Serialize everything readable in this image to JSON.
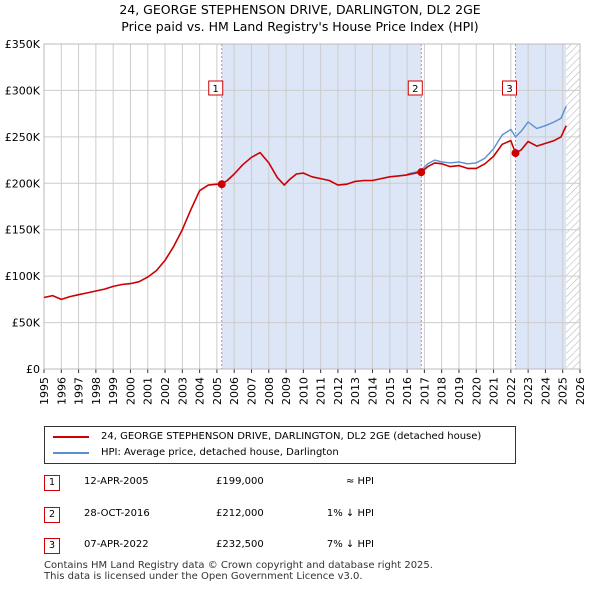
{
  "header": {
    "title_line1": "24, GEORGE STEPHENSON DRIVE, DARLINGTON, DL2 2GE",
    "title_line2": "Price paid vs. HM Land Registry's House Price Index (HPI)"
  },
  "colors": {
    "property_line": "#cc0000",
    "hpi_line": "#5a8fd0",
    "band_fill": "#dde6f7",
    "vline": "#e07b7b",
    "grid": "#cccccc"
  },
  "chart_data": {
    "type": "line",
    "title": "24, GEORGE STEPHENSON DRIVE, DARLINGTON, DL2 2GE",
    "subtitle": "Price paid vs. HM Land Registry's House Price Index (HPI)",
    "xlabel": "",
    "ylabel": "",
    "xlim": [
      1995,
      2026
    ],
    "ylim": [
      0,
      350000
    ],
    "yticks": [
      0,
      50000,
      100000,
      150000,
      200000,
      250000,
      300000,
      350000
    ],
    "ytick_labels": [
      "£0",
      "£50K",
      "£100K",
      "£150K",
      "£200K",
      "£250K",
      "£300K",
      "£350K"
    ],
    "xticks": [
      "1995",
      "1996",
      "1997",
      "1998",
      "1999",
      "2000",
      "2001",
      "2002",
      "2003",
      "2004",
      "2005",
      "2006",
      "2007",
      "2008",
      "2009",
      "2010",
      "2011",
      "2012",
      "2013",
      "2014",
      "2015",
      "2016",
      "2017",
      "2018",
      "2019",
      "2020",
      "2021",
      "2022",
      "2023",
      "2024",
      "2025",
      "2026"
    ],
    "grid": true,
    "series": [
      {
        "name": "24, GEORGE STEPHENSON DRIVE, DARLINGTON, DL2 2GE (detached house)",
        "color": "#cc0000",
        "x": [
          1995.0,
          1995.5,
          1996.0,
          1996.5,
          1997.0,
          1997.5,
          1998.0,
          1998.5,
          1999.0,
          1999.5,
          2000.0,
          2000.5,
          2001.0,
          2001.5,
          2002.0,
          2002.5,
          2003.0,
          2003.5,
          2004.0,
          2004.5,
          2005.0,
          2005.28,
          2005.6,
          2006.0,
          2006.5,
          2007.0,
          2007.5,
          2008.0,
          2008.5,
          2008.9,
          2009.2,
          2009.6,
          2010.0,
          2010.5,
          2011.0,
          2011.5,
          2012.0,
          2012.5,
          2013.0,
          2013.5,
          2014.0,
          2014.5,
          2015.0,
          2015.5,
          2016.0,
          2016.5,
          2016.82,
          2017.2,
          2017.6,
          2018.0,
          2018.5,
          2019.0,
          2019.5,
          2020.0,
          2020.5,
          2021.0,
          2021.5,
          2022.0,
          2022.27,
          2022.6,
          2023.0,
          2023.5,
          2024.0,
          2024.5,
          2024.9,
          2025.2
        ],
        "values": [
          77000,
          79000,
          75000,
          78000,
          80000,
          82000,
          84000,
          86000,
          89000,
          91000,
          92000,
          94000,
          99000,
          106000,
          117000,
          132000,
          150000,
          172000,
          192000,
          198000,
          199000,
          199000,
          203000,
          210000,
          220000,
          228000,
          233000,
          222000,
          206000,
          198000,
          204000,
          210000,
          211000,
          207000,
          205000,
          203000,
          198000,
          199000,
          202000,
          203000,
          203000,
          205000,
          207000,
          208000,
          209000,
          211000,
          212000,
          218000,
          222000,
          221000,
          218000,
          219000,
          216000,
          216000,
          221000,
          229000,
          242000,
          246000,
          232500,
          236000,
          245000,
          240000,
          243000,
          246000,
          250000,
          262000
        ]
      },
      {
        "name": "HPI: Average price, detached house, Darlington",
        "color": "#5a8fd0",
        "x": [
          2016.0,
          2016.5,
          2016.82,
          2017.2,
          2017.6,
          2018.0,
          2018.5,
          2019.0,
          2019.5,
          2020.0,
          2020.5,
          2021.0,
          2021.5,
          2022.0,
          2022.27,
          2022.6,
          2023.0,
          2023.5,
          2024.0,
          2024.5,
          2024.9,
          2025.2
        ],
        "values": [
          210000,
          212000,
          214000,
          221000,
          225000,
          223000,
          222000,
          223000,
          221000,
          222000,
          227000,
          237000,
          252000,
          258000,
          250000,
          256000,
          266000,
          259000,
          262000,
          266000,
          270000,
          283000
        ]
      }
    ],
    "transactions": [
      {
        "label": "1",
        "date": "12-APR-2005",
        "price": "£199,000",
        "relation": "≈ HPI",
        "x": 2005.28,
        "value": 199000
      },
      {
        "label": "2",
        "date": "28-OCT-2016",
        "price": "£212,000",
        "relation": "1% ↓ HPI",
        "x": 2016.82,
        "value": 212000
      },
      {
        "label": "3",
        "date": "07-APR-2022",
        "price": "£232,500",
        "relation": "7% ↓ HPI",
        "x": 2022.27,
        "value": 232500
      }
    ],
    "shaded_ranges": [
      [
        2005.28,
        2016.82
      ],
      [
        2022.27,
        2025.2
      ]
    ],
    "hatched_from": 2025.2
  },
  "legend": {
    "property_label": "24, GEORGE STEPHENSON DRIVE, DARLINGTON, DL2 2GE (detached house)",
    "hpi_label": "HPI: Average price, detached house, Darlington"
  },
  "footer": {
    "line1": "Contains HM Land Registry data © Crown copyright and database right 2025.",
    "line2": "This data is licensed under the Open Government Licence v3.0."
  }
}
